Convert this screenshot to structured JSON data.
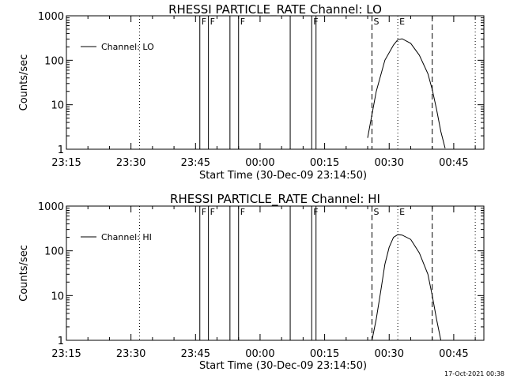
{
  "footer": {
    "timestamp": "17-Oct-2021 00:38"
  },
  "chart_data": [
    {
      "type": "line",
      "title": "RHESSI PARTICLE_RATE Channel: LO",
      "xlabel": "Start Time (30-Dec-09 23:14:50)",
      "ylabel": "Counts/sec",
      "yscale": "log",
      "xlim": [
        "23:15",
        "00:52"
      ],
      "ylim": [
        1,
        1000
      ],
      "x_ticks": [
        "23:15",
        "23:30",
        "23:45",
        "00:00",
        "00:15",
        "00:30",
        "00:45"
      ],
      "y_ticks": [
        "1",
        "10",
        "100",
        "1000"
      ],
      "legend": {
        "position": "top-left",
        "entries": [
          "Channel: LO"
        ]
      },
      "series": [
        {
          "name": "Channel: LO",
          "x": [
            "00:25",
            "00:27",
            "00:29",
            "00:31",
            "00:32",
            "00:33",
            "00:35",
            "00:37",
            "00:39",
            "00:40",
            "00:41",
            "00:42",
            "00:43"
          ],
          "y": [
            1.8,
            20,
            100,
            220,
            290,
            305,
            240,
            130,
            50,
            22,
            8,
            2.5,
            1.05
          ]
        }
      ],
      "markers": [
        {
          "time": "23:32",
          "style": "dotted",
          "label": ""
        },
        {
          "time": "23:46",
          "style": "solid",
          "label": "F"
        },
        {
          "time": "23:48",
          "style": "solid",
          "label": "F"
        },
        {
          "time": "23:53",
          "style": "solid",
          "label": ""
        },
        {
          "time": "23:55",
          "style": "solid",
          "label": "F"
        },
        {
          "time": "00:07",
          "style": "solid",
          "label": ""
        },
        {
          "time": "00:12",
          "style": "solid",
          "label": "F"
        },
        {
          "time": "00:13",
          "style": "solid",
          "label": ""
        },
        {
          "time": "00:26",
          "style": "dashed",
          "label": "S"
        },
        {
          "time": "00:32",
          "style": "dotted",
          "label": "E"
        },
        {
          "time": "00:40",
          "style": "dashed",
          "label": ""
        },
        {
          "time": "00:50",
          "style": "dotted",
          "label": ""
        }
      ]
    },
    {
      "type": "line",
      "title": "RHESSI PARTICLE_RATE Channel: HI",
      "xlabel": "Start Time (30-Dec-09 23:14:50)",
      "ylabel": "Counts/sec",
      "yscale": "log",
      "xlim": [
        "23:15",
        "00:52"
      ],
      "ylim": [
        1,
        1000
      ],
      "x_ticks": [
        "23:15",
        "23:30",
        "23:45",
        "00:00",
        "00:15",
        "00:30",
        "00:45"
      ],
      "y_ticks": [
        "1",
        "10",
        "100",
        "1000"
      ],
      "legend": {
        "position": "top-left",
        "entries": [
          "Channel: HI"
        ]
      },
      "series": [
        {
          "name": "Channel: HI",
          "x": [
            "00:26",
            "00:27",
            "00:28",
            "00:29",
            "00:30",
            "00:31",
            "00:32",
            "00:33",
            "00:35",
            "00:37",
            "00:39",
            "00:40",
            "00:41",
            "00:42"
          ],
          "y": [
            1,
            3,
            12,
            50,
            120,
            200,
            230,
            225,
            180,
            90,
            30,
            10,
            3,
            1
          ]
        }
      ],
      "markers": [
        {
          "time": "23:32",
          "style": "dotted",
          "label": ""
        },
        {
          "time": "23:46",
          "style": "solid",
          "label": "F"
        },
        {
          "time": "23:48",
          "style": "solid",
          "label": "F"
        },
        {
          "time": "23:53",
          "style": "solid",
          "label": ""
        },
        {
          "time": "23:55",
          "style": "solid",
          "label": "F"
        },
        {
          "time": "00:07",
          "style": "solid",
          "label": ""
        },
        {
          "time": "00:12",
          "style": "solid",
          "label": "F"
        },
        {
          "time": "00:13",
          "style": "solid",
          "label": ""
        },
        {
          "time": "00:26",
          "style": "dashed",
          "label": "S"
        },
        {
          "time": "00:32",
          "style": "dotted",
          "label": "E"
        },
        {
          "time": "00:40",
          "style": "dashed",
          "label": ""
        },
        {
          "time": "00:50",
          "style": "dotted",
          "label": ""
        }
      ]
    }
  ]
}
